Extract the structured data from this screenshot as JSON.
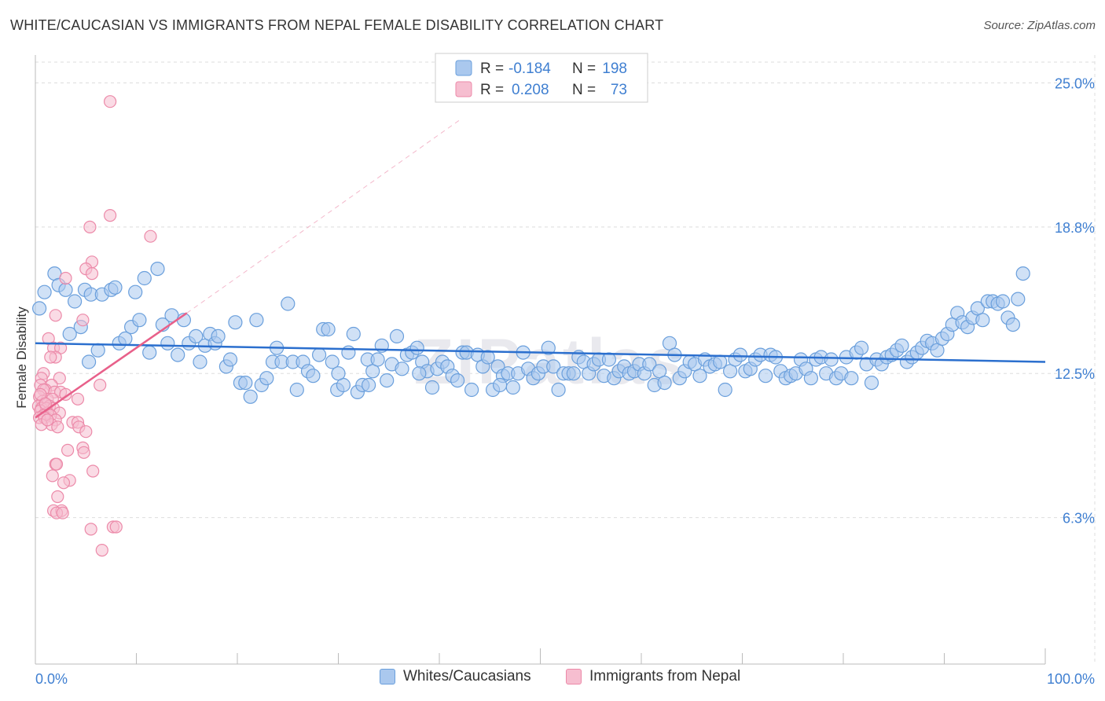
{
  "header": {
    "title": "WHITE/CAUCASIAN VS IMMIGRANTS FROM NEPAL FEMALE DISABILITY CORRELATION CHART",
    "source": "Source: ZipAtlas.com"
  },
  "colors": {
    "blue_fill": "#aac8ee",
    "blue_stroke": "#6a9fdc",
    "blue_line": "#2b6fce",
    "pink_fill": "#f6bed0",
    "pink_stroke": "#ec8aa9",
    "pink_line": "#e8608a",
    "value_text": "#3f7fd1",
    "grid": "#dddddd"
  },
  "chart_data": {
    "type": "scatter",
    "title": "WHITE/CAUCASIAN VS IMMIGRANTS FROM NEPAL FEMALE DISABILITY CORRELATION CHART",
    "xlabel": "",
    "ylabel": "Female Disability",
    "xlim": [
      0,
      100
    ],
    "ylim": [
      0,
      26.2
    ],
    "x_tick_labels": [
      {
        "value": 0,
        "label": "0.0%"
      },
      {
        "value": 100,
        "label": "100.0%"
      }
    ],
    "y_tick_labels": [
      {
        "value": 6.3,
        "label": "6.3%"
      },
      {
        "value": 12.5,
        "label": "12.5%"
      },
      {
        "value": 18.8,
        "label": "18.8%"
      },
      {
        "value": 25.0,
        "label": "25.0%"
      }
    ],
    "grid": true,
    "watermark": "ZIPatlas",
    "legend": {
      "position": "top-center",
      "entries": [
        {
          "series": "Whites/Caucasians",
          "r_label": "R =",
          "r_value": "-0.184",
          "n_label": "N =",
          "n_value": "198"
        },
        {
          "series": "Immigrants from Nepal",
          "r_label": "R =",
          "r_value": "0.208",
          "n_label": "N =",
          "n_value": "73"
        }
      ]
    },
    "series": [
      {
        "name": "Whites/Caucasians",
        "trend": {
          "x": [
            0,
            100
          ],
          "y": [
            13.8,
            13.0
          ]
        },
        "points": [
          [
            0.4,
            15.3
          ],
          [
            0.9,
            16.0
          ],
          [
            1.9,
            16.8
          ],
          [
            2.3,
            16.3
          ],
          [
            3.0,
            16.1
          ],
          [
            3.4,
            14.2
          ],
          [
            3.9,
            15.6
          ],
          [
            4.5,
            14.5
          ],
          [
            4.9,
            16.1
          ],
          [
            5.3,
            13.0
          ],
          [
            5.5,
            15.9
          ],
          [
            6.2,
            13.5
          ],
          [
            6.6,
            15.9
          ],
          [
            7.5,
            16.1
          ],
          [
            7.9,
            16.2
          ],
          [
            8.3,
            13.8
          ],
          [
            8.9,
            14.0
          ],
          [
            9.5,
            14.5
          ],
          [
            9.9,
            16.0
          ],
          [
            10.3,
            14.8
          ],
          [
            10.8,
            16.6
          ],
          [
            11.3,
            13.4
          ],
          [
            12.1,
            17.0
          ],
          [
            12.6,
            14.6
          ],
          [
            13.1,
            13.8
          ],
          [
            13.5,
            15.0
          ],
          [
            14.1,
            13.3
          ],
          [
            14.7,
            14.8
          ],
          [
            15.2,
            13.8
          ],
          [
            15.9,
            14.1
          ],
          [
            16.3,
            13.0
          ],
          [
            16.8,
            13.7
          ],
          [
            17.3,
            14.2
          ],
          [
            17.8,
            13.8
          ],
          [
            18.1,
            14.1
          ],
          [
            18.9,
            12.8
          ],
          [
            19.3,
            13.1
          ],
          [
            19.8,
            14.7
          ],
          [
            20.3,
            12.1
          ],
          [
            20.8,
            12.1
          ],
          [
            21.3,
            11.5
          ],
          [
            21.9,
            14.8
          ],
          [
            22.4,
            12.0
          ],
          [
            22.9,
            12.3
          ],
          [
            23.5,
            13.0
          ],
          [
            23.9,
            13.6
          ],
          [
            24.4,
            13.0
          ],
          [
            25.0,
            15.5
          ],
          [
            25.5,
            13.0
          ],
          [
            25.9,
            11.8
          ],
          [
            26.5,
            13.0
          ],
          [
            27.0,
            12.6
          ],
          [
            27.5,
            12.4
          ],
          [
            28.1,
            13.3
          ],
          [
            28.5,
            14.4
          ],
          [
            29.0,
            14.4
          ],
          [
            29.4,
            13.0
          ],
          [
            29.9,
            11.8
          ],
          [
            30.5,
            12.0
          ],
          [
            31.0,
            13.4
          ],
          [
            31.5,
            14.2
          ],
          [
            31.9,
            11.7
          ],
          [
            32.4,
            12.0
          ],
          [
            32.9,
            13.1
          ],
          [
            33.4,
            12.6
          ],
          [
            33.9,
            13.1
          ],
          [
            34.3,
            13.7
          ],
          [
            34.8,
            12.2
          ],
          [
            35.3,
            12.9
          ],
          [
            35.8,
            14.1
          ],
          [
            36.3,
            12.7
          ],
          [
            36.8,
            13.3
          ],
          [
            37.3,
            13.4
          ],
          [
            37.8,
            13.6
          ],
          [
            38.3,
            13.0
          ],
          [
            38.8,
            12.6
          ],
          [
            39.3,
            11.9
          ],
          [
            39.8,
            12.7
          ],
          [
            40.3,
            13.0
          ],
          [
            40.8,
            12.8
          ],
          [
            41.3,
            12.4
          ],
          [
            41.8,
            12.2
          ],
          [
            42.3,
            13.4
          ],
          [
            42.7,
            13.4
          ],
          [
            43.2,
            11.8
          ],
          [
            43.8,
            13.3
          ],
          [
            44.3,
            12.8
          ],
          [
            44.8,
            13.2
          ],
          [
            45.3,
            11.8
          ],
          [
            45.8,
            12.8
          ],
          [
            46.3,
            12.4
          ],
          [
            46.8,
            12.5
          ],
          [
            47.3,
            11.9
          ],
          [
            47.8,
            12.5
          ],
          [
            48.3,
            13.4
          ],
          [
            48.8,
            12.7
          ],
          [
            49.3,
            12.3
          ],
          [
            49.8,
            12.5
          ],
          [
            50.3,
            12.8
          ],
          [
            50.8,
            13.6
          ],
          [
            51.3,
            12.8
          ],
          [
            51.8,
            11.8
          ],
          [
            52.3,
            12.5
          ],
          [
            52.8,
            12.5
          ],
          [
            53.3,
            12.5
          ],
          [
            53.8,
            13.2
          ],
          [
            54.3,
            13.0
          ],
          [
            54.8,
            12.5
          ],
          [
            55.3,
            12.9
          ],
          [
            55.8,
            13.1
          ],
          [
            56.3,
            12.4
          ],
          [
            56.8,
            13.1
          ],
          [
            57.3,
            12.3
          ],
          [
            57.8,
            12.6
          ],
          [
            58.3,
            12.8
          ],
          [
            58.8,
            12.5
          ],
          [
            59.3,
            12.6
          ],
          [
            59.8,
            12.9
          ],
          [
            60.3,
            12.5
          ],
          [
            60.8,
            12.9
          ],
          [
            61.3,
            12.0
          ],
          [
            61.8,
            12.6
          ],
          [
            62.3,
            12.1
          ],
          [
            62.8,
            13.8
          ],
          [
            63.3,
            13.3
          ],
          [
            63.8,
            12.3
          ],
          [
            64.3,
            12.6
          ],
          [
            64.8,
            13.0
          ],
          [
            65.3,
            12.9
          ],
          [
            65.8,
            12.4
          ],
          [
            66.3,
            13.1
          ],
          [
            66.8,
            12.8
          ],
          [
            67.3,
            12.9
          ],
          [
            67.8,
            13.0
          ],
          [
            68.3,
            11.8
          ],
          [
            68.8,
            12.6
          ],
          [
            69.3,
            13.1
          ],
          [
            69.8,
            13.3
          ],
          [
            70.3,
            12.6
          ],
          [
            70.8,
            12.7
          ],
          [
            71.3,
            13.1
          ],
          [
            71.8,
            13.3
          ],
          [
            72.3,
            12.4
          ],
          [
            72.8,
            13.3
          ],
          [
            73.3,
            13.2
          ],
          [
            73.8,
            12.6
          ],
          [
            74.3,
            12.3
          ],
          [
            74.8,
            12.4
          ],
          [
            75.3,
            12.5
          ],
          [
            75.8,
            13.1
          ],
          [
            76.3,
            12.7
          ],
          [
            76.8,
            12.3
          ],
          [
            77.3,
            13.1
          ],
          [
            77.8,
            13.2
          ],
          [
            78.3,
            12.5
          ],
          [
            78.8,
            13.1
          ],
          [
            79.3,
            12.3
          ],
          [
            79.8,
            12.5
          ],
          [
            80.3,
            13.2
          ],
          [
            80.8,
            12.3
          ],
          [
            81.3,
            13.4
          ],
          [
            81.8,
            13.6
          ],
          [
            82.3,
            12.9
          ],
          [
            82.8,
            12.1
          ],
          [
            83.3,
            13.1
          ],
          [
            83.8,
            12.9
          ],
          [
            84.3,
            13.2
          ],
          [
            84.8,
            13.3
          ],
          [
            85.3,
            13.5
          ],
          [
            85.8,
            13.7
          ],
          [
            86.3,
            13.0
          ],
          [
            86.8,
            13.2
          ],
          [
            87.3,
            13.4
          ],
          [
            87.8,
            13.6
          ],
          [
            88.3,
            13.9
          ],
          [
            88.8,
            13.8
          ],
          [
            89.3,
            13.5
          ],
          [
            89.8,
            14.0
          ],
          [
            90.3,
            14.2
          ],
          [
            90.8,
            14.6
          ],
          [
            91.3,
            15.1
          ],
          [
            91.8,
            14.7
          ],
          [
            92.3,
            14.5
          ],
          [
            92.8,
            14.9
          ],
          [
            93.3,
            15.3
          ],
          [
            93.8,
            14.8
          ],
          [
            94.3,
            15.6
          ],
          [
            94.8,
            15.6
          ],
          [
            95.3,
            15.5
          ],
          [
            95.8,
            15.6
          ],
          [
            96.3,
            14.9
          ],
          [
            96.8,
            14.6
          ],
          [
            97.3,
            15.7
          ],
          [
            97.8,
            16.8
          ],
          [
            30.0,
            12.5
          ],
          [
            33.0,
            12.0
          ],
          [
            38.0,
            12.5
          ],
          [
            46.0,
            12.0
          ]
        ]
      },
      {
        "name": "Immigrants from Nepal",
        "trend": {
          "x": [
            0,
            15
          ],
          "y": [
            10.6,
            15.1
          ]
        },
        "trend_extension": {
          "x": [
            15,
            42
          ],
          "y": [
            15.1,
            23.4
          ]
        },
        "points": [
          [
            7.4,
            24.2
          ],
          [
            7.4,
            19.3
          ],
          [
            5.4,
            18.8
          ],
          [
            11.4,
            18.4
          ],
          [
            5.6,
            17.3
          ],
          [
            5.0,
            17.0
          ],
          [
            5.6,
            16.8
          ],
          [
            3.0,
            16.6
          ],
          [
            2.0,
            15.0
          ],
          [
            4.7,
            14.8
          ],
          [
            1.3,
            14.0
          ],
          [
            1.8,
            13.6
          ],
          [
            2.5,
            13.6
          ],
          [
            2.0,
            13.2
          ],
          [
            1.5,
            13.2
          ],
          [
            0.8,
            12.5
          ],
          [
            0.6,
            12.3
          ],
          [
            2.4,
            12.3
          ],
          [
            1.6,
            12.0
          ],
          [
            0.5,
            12.0
          ],
          [
            6.4,
            12.0
          ],
          [
            1.0,
            11.8
          ],
          [
            0.8,
            11.8
          ],
          [
            1.9,
            11.7
          ],
          [
            2.5,
            11.7
          ],
          [
            0.4,
            11.5
          ],
          [
            1.2,
            11.4
          ],
          [
            1.7,
            11.4
          ],
          [
            4.2,
            11.4
          ],
          [
            0.7,
            11.3
          ],
          [
            0.9,
            11.2
          ],
          [
            0.3,
            11.1
          ],
          [
            1.4,
            11.1
          ],
          [
            0.6,
            11.0
          ],
          [
            1.1,
            11.0
          ],
          [
            1.8,
            11.0
          ],
          [
            0.5,
            10.9
          ],
          [
            1.2,
            10.8
          ],
          [
            2.4,
            10.8
          ],
          [
            0.8,
            10.7
          ],
          [
            1.5,
            10.7
          ],
          [
            0.4,
            10.6
          ],
          [
            0.9,
            10.6
          ],
          [
            2.0,
            10.5
          ],
          [
            3.7,
            10.4
          ],
          [
            4.2,
            10.4
          ],
          [
            1.6,
            10.3
          ],
          [
            0.6,
            10.3
          ],
          [
            2.2,
            10.2
          ],
          [
            4.3,
            10.2
          ],
          [
            5.0,
            10.0
          ],
          [
            4.7,
            9.3
          ],
          [
            4.8,
            9.1
          ],
          [
            3.2,
            9.2
          ],
          [
            2.0,
            8.6
          ],
          [
            2.1,
            8.6
          ],
          [
            1.7,
            8.1
          ],
          [
            5.7,
            8.3
          ],
          [
            3.4,
            7.9
          ],
          [
            2.8,
            7.8
          ],
          [
            2.2,
            7.2
          ],
          [
            1.8,
            6.6
          ],
          [
            2.6,
            6.6
          ],
          [
            2.1,
            6.5
          ],
          [
            2.7,
            6.5
          ],
          [
            5.5,
            5.8
          ],
          [
            7.7,
            5.9
          ],
          [
            8.0,
            5.9
          ],
          [
            6.6,
            4.9
          ],
          [
            1.2,
            10.5
          ],
          [
            3.0,
            11.6
          ],
          [
            0.5,
            11.6
          ],
          [
            1.0,
            11.2
          ]
        ]
      }
    ]
  },
  "bottom_legend": [
    {
      "label": "Whites/Caucasians"
    },
    {
      "label": "Immigrants from Nepal"
    }
  ]
}
